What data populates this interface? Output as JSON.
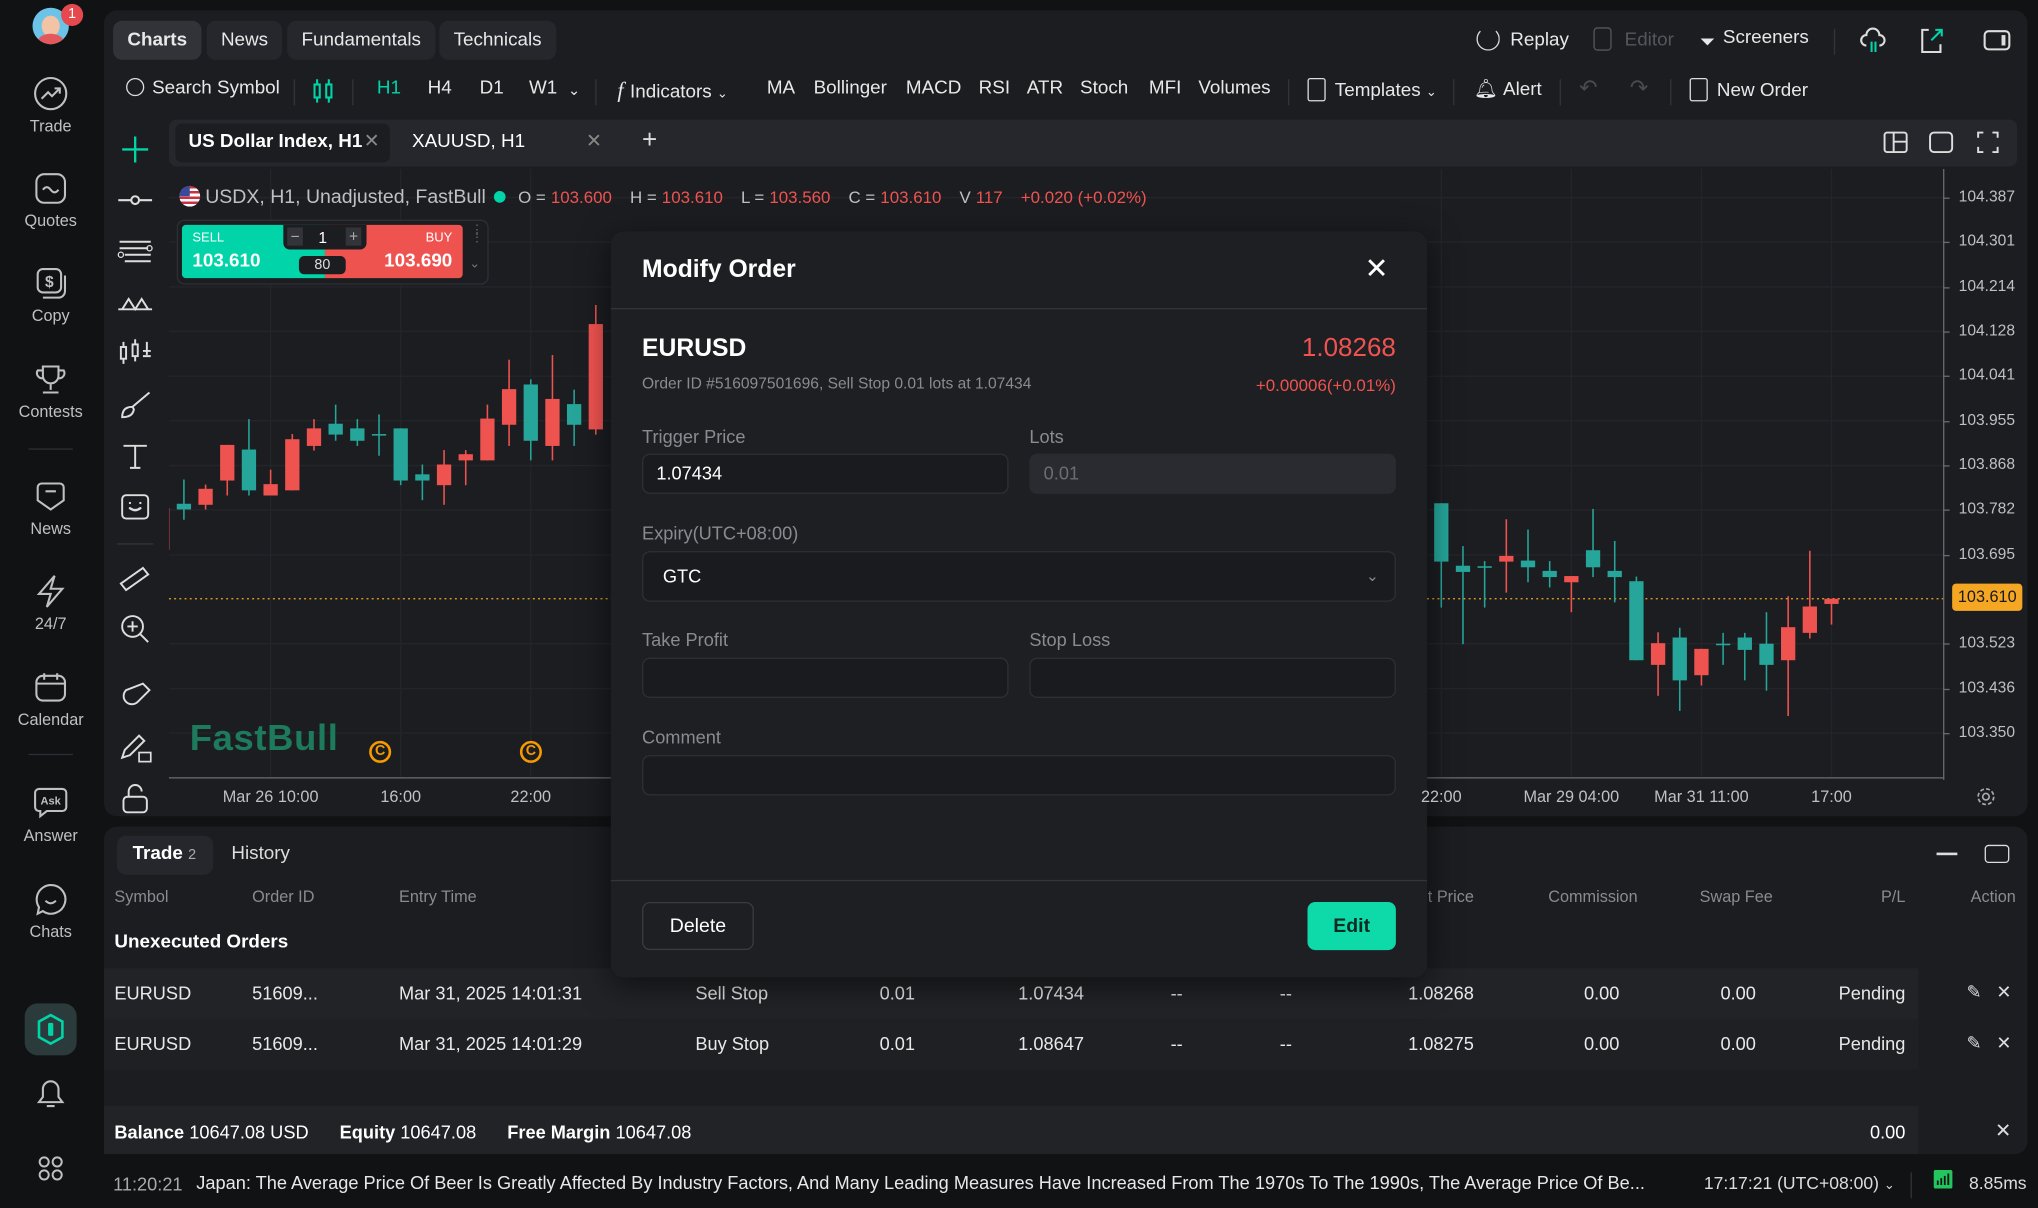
{
  "nav": {
    "badge": "1",
    "items": [
      {
        "label": "Trade",
        "icon": "trade-icon"
      },
      {
        "label": "Quotes",
        "icon": "quotes-icon"
      },
      {
        "label": "Copy",
        "icon": "copy-icon"
      },
      {
        "label": "Contests",
        "icon": "trophy-icon"
      },
      {
        "label": "News",
        "icon": "news-icon"
      },
      {
        "label": "24/7",
        "icon": "flash-icon"
      },
      {
        "label": "Calendar",
        "icon": "calendar-icon"
      },
      {
        "label": "Answer",
        "icon": "ask-icon"
      },
      {
        "label": "Chats",
        "icon": "chat-icon"
      }
    ]
  },
  "top_tabs": [
    "Charts",
    "News",
    "Fundamentals",
    "Technicals"
  ],
  "top_right": {
    "replay": "Replay",
    "editor": "Editor",
    "screeners": "Screeners"
  },
  "toolbar": {
    "search": "Search Symbol",
    "timeframes": [
      "H1",
      "H4",
      "D1",
      "W1"
    ],
    "active_timeframe": "H1",
    "indicators": "Indicators",
    "quick": [
      "MA",
      "Bollinger",
      "MACD",
      "RSI",
      "ATR",
      "Stoch",
      "MFI",
      "Volumes"
    ],
    "templates": "Templates",
    "alert": "Alert",
    "new_order": "New Order"
  },
  "chart_tabs": [
    {
      "label": "US Dollar Index, H1",
      "active": true
    },
    {
      "label": "XAUUSD, H1",
      "active": false
    }
  ],
  "legend": {
    "symbol": "USDX, H1, Unadjusted, FastBull",
    "o_label": "O =",
    "o": "103.600",
    "h_label": "H =",
    "h": "103.610",
    "l_label": "L =",
    "l": "103.560",
    "c_label": "C =",
    "c": "103.610",
    "v_label": "V",
    "v": "117",
    "change": "+0.020 (+0.02%)"
  },
  "trade_widget": {
    "sell_label": "SELL",
    "sell_price": "103.610",
    "buy_label": "BUY",
    "buy_price": "103.690",
    "qty": "1",
    "spread": "80"
  },
  "watermark": "FastBull",
  "chart_data": {
    "type": "candlestick",
    "colors": {
      "up": "#ef5350",
      "down": "#26a69a",
      "last_price": "#f5a623"
    },
    "ylim": [
      103.25,
      104.44
    ],
    "y_ticks": [
      "104.387",
      "104.301",
      "104.214",
      "104.128",
      "104.041",
      "103.955",
      "103.868",
      "103.782",
      "103.695",
      "103.523",
      "103.436",
      "103.350"
    ],
    "last_price": "103.610",
    "x_ticks": [
      {
        "label": "Mar 26 10:00",
        "bar": 4
      },
      {
        "label": "16:00",
        "bar": 10
      },
      {
        "label": "22:00",
        "bar": 16
      },
      {
        "label": "22:00",
        "bar": 58
      },
      {
        "label": "Mar 29 04:00",
        "bar": 64
      },
      {
        "label": "Mar 31 11:00",
        "bar": 70
      },
      {
        "label": "17:00",
        "bar": 76
      }
    ],
    "candles": [
      {
        "bar": -1,
        "o": 103.705,
        "h": 103.786,
        "l": 103.705,
        "c": 103.786
      },
      {
        "bar": 0,
        "o": 103.794,
        "h": 103.841,
        "l": 103.763,
        "c": 103.783
      },
      {
        "bar": 1,
        "o": 103.792,
        "h": 103.831,
        "l": 103.783,
        "c": 103.823
      },
      {
        "bar": 2,
        "o": 103.839,
        "h": 103.908,
        "l": 103.81,
        "c": 103.908
      },
      {
        "bar": 3,
        "o": 103.899,
        "h": 103.958,
        "l": 103.81,
        "c": 103.82
      },
      {
        "bar": 4,
        "o": 103.81,
        "h": 103.86,
        "l": 103.81,
        "c": 103.832
      },
      {
        "bar": 5,
        "o": 103.82,
        "h": 103.929,
        "l": 103.82,
        "c": 103.919
      },
      {
        "bar": 6,
        "o": 103.906,
        "h": 103.958,
        "l": 103.897,
        "c": 103.94
      },
      {
        "bar": 7,
        "o": 103.949,
        "h": 103.986,
        "l": 103.916,
        "c": 103.928
      },
      {
        "bar": 8,
        "o": 103.94,
        "h": 103.958,
        "l": 103.906,
        "c": 103.916
      },
      {
        "bar": 9,
        "o": 103.929,
        "h": 103.967,
        "l": 103.887,
        "c": 103.928
      },
      {
        "bar": 10,
        "o": 103.94,
        "h": 103.94,
        "l": 103.83,
        "c": 103.839
      },
      {
        "bar": 11,
        "o": 103.851,
        "h": 103.87,
        "l": 103.801,
        "c": 103.839
      },
      {
        "bar": 12,
        "o": 103.83,
        "h": 103.898,
        "l": 103.792,
        "c": 103.87
      },
      {
        "bar": 13,
        "o": 103.878,
        "h": 103.898,
        "l": 103.83,
        "c": 103.89
      },
      {
        "bar": 14,
        "o": 103.878,
        "h": 103.986,
        "l": 103.878,
        "c": 103.959
      },
      {
        "bar": 15,
        "o": 103.947,
        "h": 104.073,
        "l": 103.906,
        "c": 104.016
      },
      {
        "bar": 16,
        "o": 104.025,
        "h": 104.035,
        "l": 103.878,
        "c": 103.916
      },
      {
        "bar": 17,
        "o": 103.906,
        "h": 104.082,
        "l": 103.878,
        "c": 103.997
      },
      {
        "bar": 18,
        "o": 103.987,
        "h": 104.015,
        "l": 103.906,
        "c": 103.947
      },
      {
        "bar": 19,
        "o": 103.938,
        "h": 104.179,
        "l": 103.928,
        "c": 104.142
      },
      {
        "bar": 58,
        "o": 103.795,
        "h": 103.795,
        "l": 103.593,
        "c": 103.682
      },
      {
        "bar": 59,
        "o": 103.674,
        "h": 103.712,
        "l": 103.522,
        "c": 103.662
      },
      {
        "bar": 60,
        "o": 103.673,
        "h": 103.683,
        "l": 103.593,
        "c": 103.672
      },
      {
        "bar": 61,
        "o": 103.682,
        "h": 103.764,
        "l": 103.622,
        "c": 103.693
      },
      {
        "bar": 62,
        "o": 103.684,
        "h": 103.744,
        "l": 103.642,
        "c": 103.671
      },
      {
        "bar": 63,
        "o": 103.664,
        "h": 103.683,
        "l": 103.632,
        "c": 103.652
      },
      {
        "bar": 64,
        "o": 103.642,
        "h": 103.654,
        "l": 103.584,
        "c": 103.654
      },
      {
        "bar": 65,
        "o": 103.704,
        "h": 103.784,
        "l": 103.652,
        "c": 103.671
      },
      {
        "bar": 66,
        "o": 103.664,
        "h": 103.722,
        "l": 103.603,
        "c": 103.652
      },
      {
        "bar": 67,
        "o": 103.644,
        "h": 103.653,
        "l": 103.491,
        "c": 103.491
      },
      {
        "bar": 68,
        "o": 103.482,
        "h": 103.545,
        "l": 103.422,
        "c": 103.524
      },
      {
        "bar": 69,
        "o": 103.535,
        "h": 103.554,
        "l": 103.393,
        "c": 103.452
      },
      {
        "bar": 70,
        "o": 103.462,
        "h": 103.513,
        "l": 103.442,
        "c": 103.513
      },
      {
        "bar": 71,
        "o": 103.523,
        "h": 103.544,
        "l": 103.482,
        "c": 103.522
      },
      {
        "bar": 72,
        "o": 103.535,
        "h": 103.544,
        "l": 103.452,
        "c": 103.511
      },
      {
        "bar": 73,
        "o": 103.523,
        "h": 103.584,
        "l": 103.432,
        "c": 103.482
      },
      {
        "bar": 74,
        "o": 103.491,
        "h": 103.615,
        "l": 103.383,
        "c": 103.555
      },
      {
        "bar": 75,
        "o": 103.544,
        "h": 103.703,
        "l": 103.533,
        "c": 103.595
      },
      {
        "bar": 76,
        "o": 103.6,
        "h": 103.61,
        "l": 103.56,
        "c": 103.61
      }
    ]
  },
  "modal": {
    "title": "Modify Order",
    "symbol": "EURUSD",
    "price": "1.08268",
    "order_info": "Order ID #516097501696, Sell Stop 0.01 lots at 1.07434",
    "change": "+0.00006(+0.01%)",
    "trigger_label": "Trigger Price",
    "trigger_value": "1.07434",
    "lots_label": "Lots",
    "lots_value": "0.01",
    "expiry_label": "Expiry(UTC+08:00)",
    "expiry_value": "GTC",
    "tp_label": "Take Profit",
    "tp_value": "",
    "sl_label": "Stop Loss",
    "sl_value": "",
    "comment_label": "Comment",
    "comment_value": "",
    "delete": "Delete",
    "edit": "Edit"
  },
  "bottom": {
    "tabs": [
      {
        "label": "Trade",
        "count": "2"
      },
      {
        "label": "History"
      }
    ],
    "headers": {
      "symbol": "Symbol",
      "order_id": "Order ID",
      "entry_time": "Entry Time",
      "current_price": "Current Price",
      "commission": "Commission",
      "swap": "Swap Fee",
      "pl": "P/L",
      "action": "Action"
    },
    "section": "Unexecuted Orders",
    "rows": [
      {
        "symbol": "EURUSD",
        "order_id": "51609...",
        "entry_time": "Mar 31, 2025 14:01:31",
        "type": "Sell Stop",
        "lots": "0.01",
        "price": "1.07434",
        "tp": "--",
        "sl": "--",
        "current": "1.08268",
        "commission": "0.00",
        "swap": "0.00",
        "pl": "Pending"
      },
      {
        "symbol": "EURUSD",
        "order_id": "51609...",
        "entry_time": "Mar 31, 2025 14:01:29",
        "type": "Buy Stop",
        "lots": "0.01",
        "price": "1.08647",
        "tp": "--",
        "sl": "--",
        "current": "1.08275",
        "commission": "0.00",
        "swap": "0.00",
        "pl": "Pending"
      }
    ],
    "balance_label": "Balance",
    "balance": "10647.08 USD",
    "equity_label": "Equity",
    "equity": "10647.08",
    "margin_label": "Free Margin",
    "margin": "10647.08",
    "total_pl": "0.00"
  },
  "footer": {
    "time": "11:20:21",
    "news": "Japan: The Average Price Of Beer Is Greatly Affected By Industry Factors, And Many Leading Measures Have Increased From The 1970s To The 1990s, The Average Price Of Be...",
    "clock": "17:17:21 (UTC+08:00)",
    "latency": "8.85ms"
  }
}
